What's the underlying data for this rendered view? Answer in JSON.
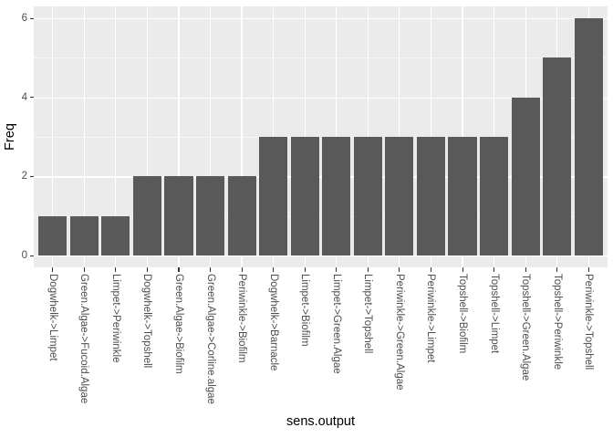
{
  "chart_data": {
    "type": "bar",
    "title": "",
    "xlabel": "sens.output",
    "ylabel": "Freq",
    "categories": [
      "Dogwhelk->Limpet",
      "Green.Algae->Fucoid.Algae",
      "Limpet->Periwinkle",
      "Dogwhelk->Topshell",
      "Green.Algae->Biofilm",
      "Green.Algae->Corline.algae",
      "Periwinkle->Biofilm",
      "Dogwhelk->Barnacle",
      "Limpet->Biofilm",
      "Limpet->Green.Algae",
      "Limpet->Topshell",
      "Periwinkle->Green.Algae",
      "Periwinkle->Limpet",
      "Topshell->Biofilm",
      "Topshell->Limpet",
      "Topshell->Green.Algae",
      "Topshell->Periwinkle",
      "Periwinkle->Topshell"
    ],
    "values": [
      1,
      1,
      1,
      2,
      2,
      2,
      2,
      3,
      3,
      3,
      3,
      3,
      3,
      3,
      3,
      4,
      5,
      6
    ],
    "ylim": [
      0,
      6
    ],
    "yticks_major": [
      0,
      2,
      4,
      6
    ],
    "yticks_minor": [
      1,
      3,
      5
    ],
    "grid": true,
    "legend": "none",
    "colors": {
      "bar_fill": "#595959",
      "panel_bg": "#EBEBEB",
      "grid_line": "#FFFFFF",
      "axis_text": "#4D4D4D",
      "axis_title": "#000000",
      "tick_mark": "#333333",
      "background": "#FFFFFF"
    }
  }
}
